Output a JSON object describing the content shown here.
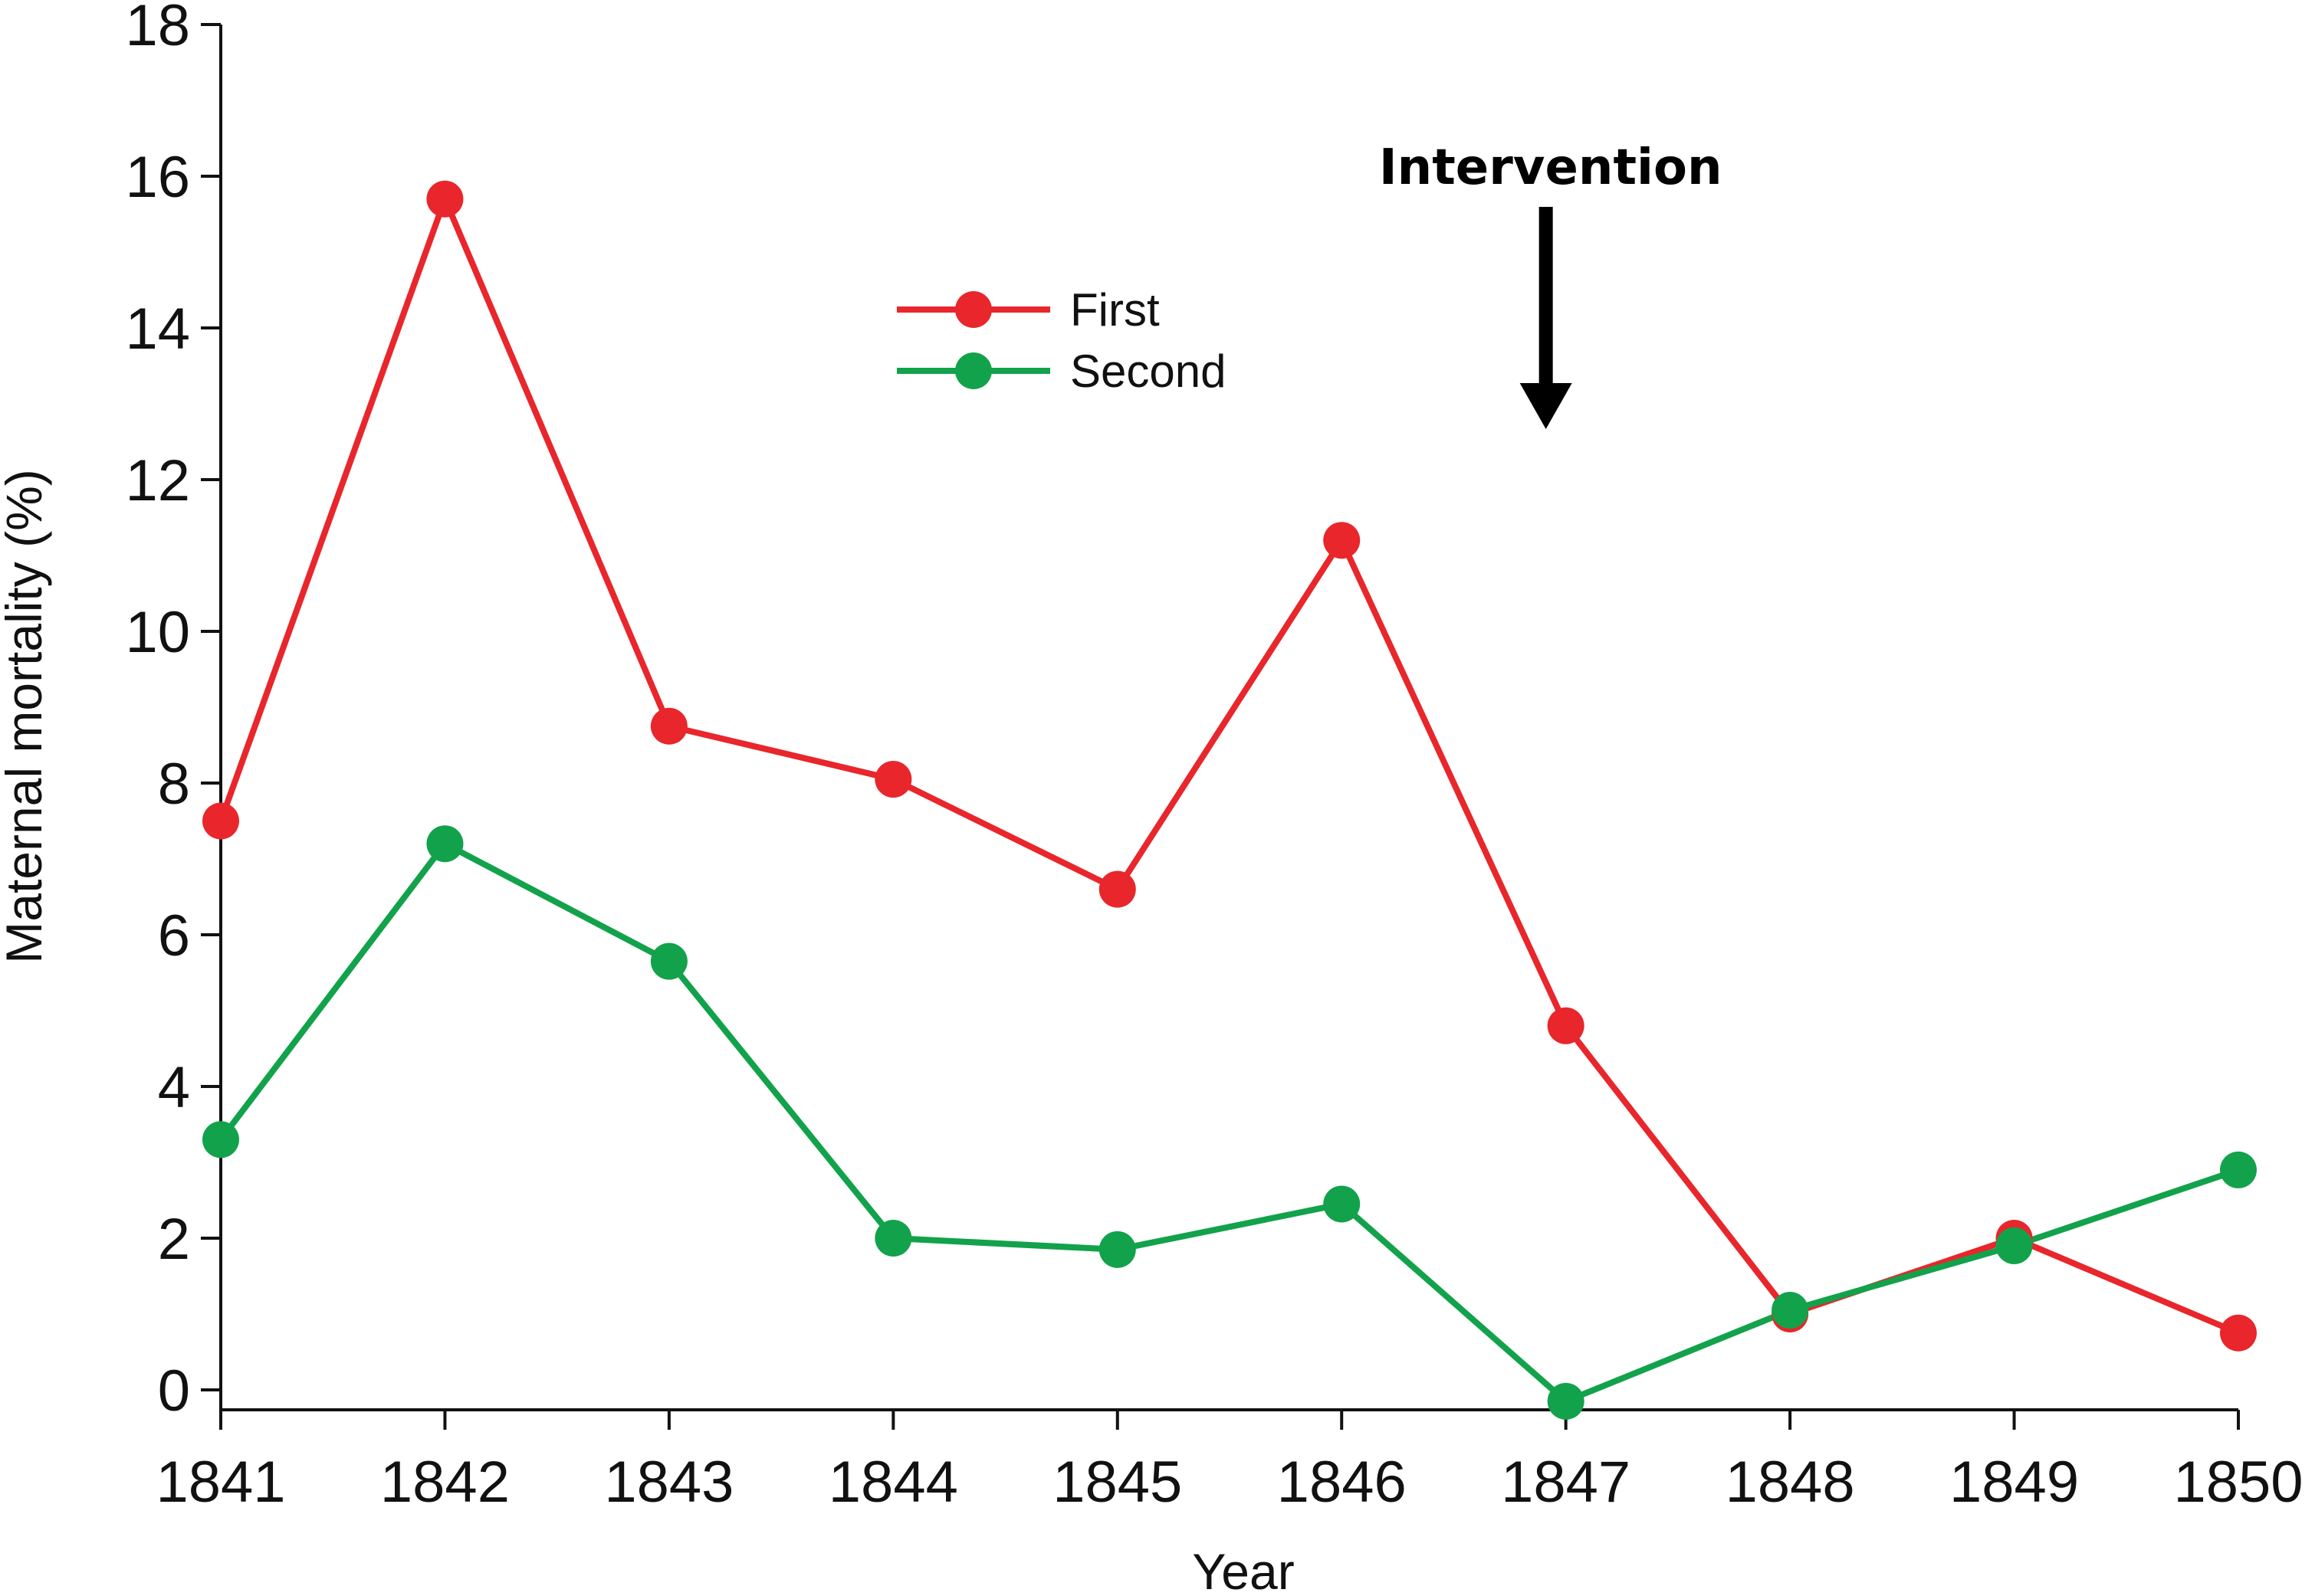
{
  "chart_data": {
    "type": "line",
    "title": "",
    "xlabel": "Year",
    "ylabel": "Maternal mortality (%)",
    "categories": [
      "1841",
      "1842",
      "1843",
      "1844",
      "1845",
      "1846",
      "1847",
      "1848",
      "1849",
      "1850"
    ],
    "yticks": [
      "0",
      "2",
      "4",
      "6",
      "8",
      "10",
      "12",
      "14",
      "16",
      "18"
    ],
    "ylim": [
      0,
      18
    ],
    "grid": false,
    "legend_position": "top-center",
    "series": [
      {
        "name": "First",
        "color": "#e8262b",
        "values": [
          7.5,
          15.7,
          8.75,
          8.05,
          6.6,
          11.2,
          4.8,
          1.0,
          2.0,
          0.75
        ]
      },
      {
        "name": "Second",
        "color": "#12a24b",
        "values": [
          3.3,
          7.2,
          5.65,
          2.0,
          1.85,
          2.45,
          -0.15,
          1.05,
          1.9,
          2.9
        ]
      }
    ],
    "annotations": [
      {
        "text": "Intervention",
        "arrow": "down",
        "x": "1847"
      }
    ]
  }
}
